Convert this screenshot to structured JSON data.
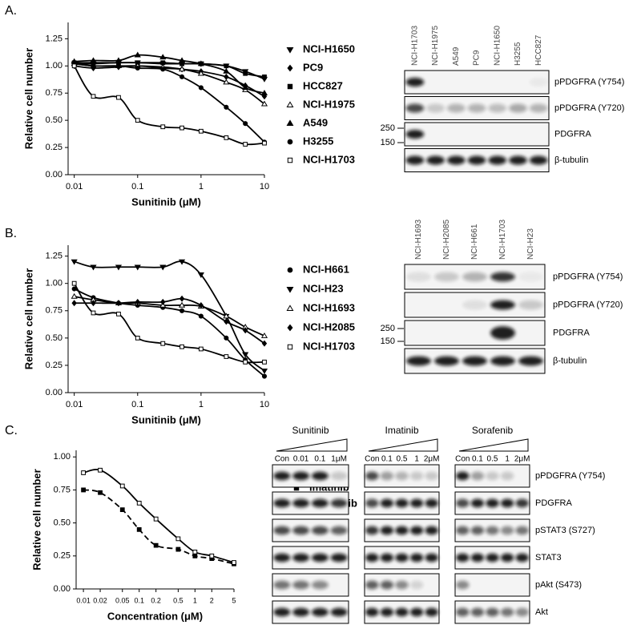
{
  "panel_labels": [
    "A.",
    "B.",
    "C."
  ],
  "chart_data": [
    {
      "type": "scatter",
      "xscale": "log",
      "x_label": "Sunitinib (μM)",
      "y_label": "Relative cell number",
      "x": [
        0.01,
        0.02,
        0.05,
        0.1,
        0.25,
        0.5,
        1,
        2.5,
        5,
        10
      ],
      "xlim": [
        0.008,
        10
      ],
      "xticks": [
        0.01,
        0.1,
        1,
        10
      ],
      "ylim": [
        0,
        1.4
      ],
      "yticks": [
        {
          "value": 0,
          "label": "0.00"
        },
        {
          "value": 0.25,
          "label": "0.25"
        },
        {
          "value": 0.5,
          "label": "0.50"
        },
        {
          "value": 0.75,
          "label": "0.75"
        },
        {
          "value": 1,
          "label": "1.00"
        },
        {
          "value": 1.25,
          "label": "1.25"
        }
      ],
      "legend": "right",
      "series": [
        {
          "name": "NCI-H1650",
          "marker": "triangle-down",
          "color": "#000000",
          "line_style": "solid",
          "values": [
            1.02,
            1.02,
            1.03,
            1.03,
            1.02,
            1.02,
            1.02,
            1.0,
            0.95,
            0.88
          ]
        },
        {
          "name": "PC9",
          "marker": "diamond",
          "color": "#000000",
          "line_style": "solid",
          "values": [
            1.0,
            0.98,
            0.99,
            1.0,
            0.98,
            0.97,
            0.95,
            0.9,
            0.82,
            0.72
          ]
        },
        {
          "name": "HCC827",
          "marker": "square",
          "color": "#000000",
          "line_style": "solid",
          "values": [
            1.03,
            1.03,
            1.03,
            1.03,
            1.03,
            1.02,
            1.02,
            1.0,
            0.93,
            0.9
          ]
        },
        {
          "name": "NCI-H1975",
          "marker": "triangle-open",
          "color": "#000000",
          "line_style": "solid",
          "values": [
            1.02,
            1.0,
            1.0,
            1.0,
            0.99,
            0.97,
            0.93,
            0.85,
            0.78,
            0.65
          ]
        },
        {
          "name": "A549",
          "marker": "triangle",
          "color": "#000000",
          "line_style": "solid",
          "values": [
            1.04,
            1.05,
            1.05,
            1.1,
            1.08,
            1.05,
            1.02,
            0.95,
            0.8,
            0.75
          ]
        },
        {
          "name": "H3255",
          "marker": "circle",
          "color": "#000000",
          "line_style": "solid",
          "values": [
            1.02,
            1.0,
            1.0,
            0.98,
            0.97,
            0.9,
            0.8,
            0.62,
            0.47,
            0.3
          ]
        },
        {
          "name": "NCI-H1703",
          "marker": "square-open",
          "color": "#000000",
          "line_style": "solid",
          "values": [
            1.0,
            0.72,
            0.71,
            0.5,
            0.44,
            0.43,
            0.4,
            0.34,
            0.28,
            0.29
          ]
        }
      ]
    },
    {
      "type": "scatter",
      "xscale": "log",
      "x_label": "Sunitinib (μM)",
      "y_label": "Relative cell number",
      "x": [
        0.01,
        0.02,
        0.05,
        0.1,
        0.25,
        0.5,
        1,
        2.5,
        5,
        10
      ],
      "xlim": [
        0.008,
        10
      ],
      "xticks": [
        0.01,
        0.1,
        1,
        10
      ],
      "ylim": [
        0,
        1.35
      ],
      "yticks": [
        {
          "value": 0,
          "label": "0.00"
        },
        {
          "value": 0.25,
          "label": "0.25"
        },
        {
          "value": 0.5,
          "label": "0.50"
        },
        {
          "value": 0.75,
          "label": "0.75"
        },
        {
          "value": 1,
          "label": "1.00"
        },
        {
          "value": 1.25,
          "label": "1.25"
        }
      ],
      "legend": "right",
      "series": [
        {
          "name": "NCI-H661",
          "marker": "circle",
          "color": "#000000",
          "line_style": "solid",
          "values": [
            0.95,
            0.87,
            0.82,
            0.8,
            0.78,
            0.75,
            0.7,
            0.5,
            0.3,
            0.15
          ]
        },
        {
          "name": "NCI-H23",
          "marker": "triangle-down",
          "color": "#000000",
          "line_style": "solid",
          "values": [
            1.2,
            1.15,
            1.15,
            1.15,
            1.15,
            1.2,
            1.08,
            0.7,
            0.35,
            0.2
          ]
        },
        {
          "name": "NCI-H1693",
          "marker": "triangle-open",
          "color": "#000000",
          "line_style": "solid",
          "values": [
            0.88,
            0.85,
            0.82,
            0.82,
            0.8,
            0.8,
            0.79,
            0.7,
            0.6,
            0.52
          ]
        },
        {
          "name": "NCI-H2085",
          "marker": "diamond",
          "color": "#000000",
          "line_style": "solid",
          "values": [
            0.82,
            0.82,
            0.82,
            0.83,
            0.83,
            0.86,
            0.8,
            0.65,
            0.57,
            0.45
          ]
        },
        {
          "name": "NCI-H1703",
          "marker": "square-open",
          "color": "#000000",
          "line_style": "solid",
          "values": [
            1.0,
            0.73,
            0.72,
            0.5,
            0.45,
            0.42,
            0.4,
            0.33,
            0.28,
            0.28
          ]
        }
      ]
    },
    {
      "type": "scatter",
      "xscale": "log",
      "x_label": "Concentration (μM)",
      "y_label": "Relative cell number",
      "x": [
        0.01,
        0.02,
        0.05,
        0.1,
        0.2,
        0.5,
        1,
        2,
        5
      ],
      "xlim": [
        0.0074,
        5
      ],
      "xticks": [
        0.01,
        0.02,
        0.05,
        0.1,
        0.2,
        0.5,
        1,
        2,
        5
      ],
      "ylim": [
        0,
        1.05
      ],
      "yticks": [
        {
          "value": 0,
          "label": "0.00"
        },
        {
          "value": 0.25,
          "label": "0.25"
        },
        {
          "value": 0.5,
          "label": "0.50"
        },
        {
          "value": 0.75,
          "label": "0.75"
        },
        {
          "value": 1,
          "label": "1.00"
        }
      ],
      "legend": "right",
      "series": [
        {
          "name": "Imatinib",
          "marker": "square",
          "color": "#000000",
          "line_style": "dashed",
          "values": [
            0.75,
            0.73,
            0.6,
            0.45,
            0.33,
            0.3,
            0.25,
            0.23,
            0.19
          ]
        },
        {
          "name": "Sorafenib",
          "marker": "square-open",
          "color": "#000000",
          "line_style": "solid",
          "values": [
            0.88,
            0.9,
            0.78,
            0.65,
            0.53,
            0.38,
            0.28,
            0.25,
            0.2
          ]
        }
      ]
    }
  ],
  "blots": [
    {
      "lanes": [
        "NCI-H1703",
        "NCI-H1975",
        "A549",
        "PC9",
        "NCI-H1650",
        "H3255",
        "HCC827"
      ],
      "rows": [
        "pPDGFRA (Y754)",
        "pPDGFRA (Y720)",
        "PDGFRA",
        "β-tubulin"
      ],
      "markers": [
        250,
        150
      ]
    },
    {
      "lanes": [
        "NCI-H1693",
        "NCI-H2085",
        "NCI-H661",
        "NCI-H1703",
        "NCI-H23"
      ],
      "rows": [
        "pPDGFRA (Y754)",
        "pPDGFRA (Y720)",
        "PDGFRA",
        "β-tubulin"
      ],
      "markers": [
        250,
        150
      ]
    },
    {
      "groups": [
        {
          "drug": "Sunitinib",
          "lanes": [
            "Con",
            "0.01",
            "0.1",
            "1μM"
          ]
        },
        {
          "drug": "Imatinib",
          "lanes": [
            "Con",
            "0.1",
            "0.5",
            "1",
            "2μM"
          ]
        },
        {
          "drug": "Sorafenib",
          "lanes": [
            "Con",
            "0.1",
            "0.5",
            "1",
            "2μM"
          ]
        }
      ],
      "rows": [
        "pPDGFRA (Y754)",
        "PDGFRA",
        "pSTAT3 (S727)",
        "STAT3",
        "pAkt (S473)",
        "Akt"
      ]
    }
  ]
}
